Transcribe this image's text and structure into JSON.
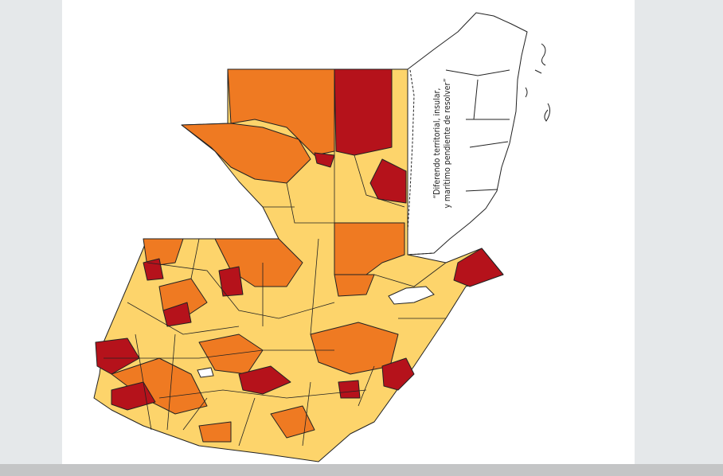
{
  "annotation": {
    "lines": [
      "“Diferendo territorial, insular,",
      "y marítimo pendiente de resolver”"
    ]
  }
}
